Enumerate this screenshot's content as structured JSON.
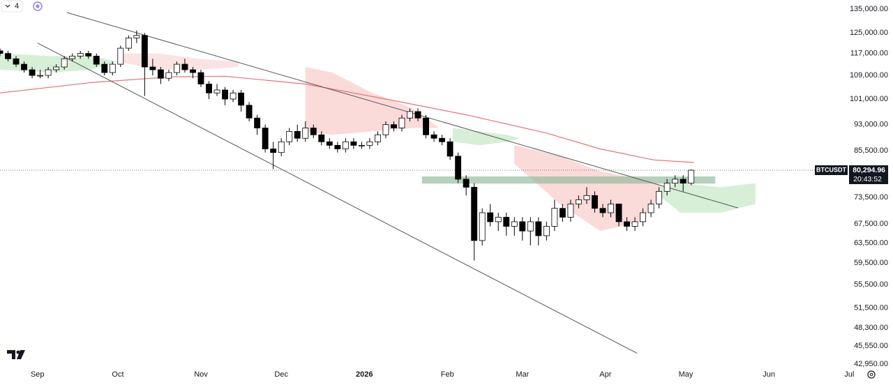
{
  "toolbar": {
    "label": "4"
  },
  "chart_data": {
    "type": "candlestick",
    "symbol": "BTCUSDT",
    "countdown": "20:43:52",
    "log_scale": true,
    "grid": false,
    "up_color": "#ffffff",
    "down_color": "#000000",
    "xlim": [
      -14,
      298.5
    ],
    "ylim": [
      42490,
      139000
    ],
    "xticks": [
      {
        "value": 0,
        "label": "Sep"
      },
      {
        "value": 30,
        "label": "Oct"
      },
      {
        "value": 61,
        "label": "Nov"
      },
      {
        "value": 91,
        "label": "Dec"
      },
      {
        "value": 122,
        "label": "2026"
      },
      {
        "value": 153,
        "label": "Feb"
      },
      {
        "value": 181,
        "label": "Mar"
      },
      {
        "value": 212,
        "label": "Apr"
      },
      {
        "value": 242,
        "label": "May"
      },
      {
        "value": 273,
        "label": "Jun"
      },
      {
        "value": 303,
        "label": "Jul"
      }
    ],
    "yticks": [
      {
        "value": 135000,
        "label": "135,000.00"
      },
      {
        "value": 125000,
        "label": "125,000.00"
      },
      {
        "value": 117000,
        "label": "117,000.00"
      },
      {
        "value": 109000,
        "label": "109,000.00"
      },
      {
        "value": 101000,
        "label": "101,000.00"
      },
      {
        "value": 93000,
        "label": "93,000.00"
      },
      {
        "value": 85500,
        "label": "85,500.00"
      },
      {
        "value": 73500,
        "label": "73,500.00"
      },
      {
        "value": 67500,
        "label": "67,500.00"
      },
      {
        "value": 63500,
        "label": "63,500.00"
      },
      {
        "value": 59500,
        "label": "59,500.00"
      },
      {
        "value": 55500,
        "label": "55,500.00"
      },
      {
        "value": 51500,
        "label": "51,500.00"
      },
      {
        "value": 48300,
        "label": "48,300.00"
      },
      {
        "value": 45550,
        "label": "45,550.00"
      },
      {
        "value": 42950,
        "label": "42,950.00"
      }
    ],
    "price_label": {
      "value": 80294.96,
      "label": "80,294.96"
    },
    "x": [
      -14,
      -11,
      -8,
      -5,
      -2,
      1,
      4,
      7,
      10,
      13,
      16,
      19,
      22,
      25,
      28,
      31,
      34,
      37,
      40,
      43,
      46,
      49,
      52,
      55,
      58,
      61,
      64,
      67,
      70,
      73,
      76,
      79,
      82,
      85,
      88,
      91,
      94,
      97,
      100,
      103,
      106,
      109,
      112,
      115,
      118,
      121,
      124,
      127,
      130,
      133,
      136,
      139,
      142,
      145,
      148,
      151,
      154,
      157,
      160,
      163,
      166,
      169,
      172,
      175,
      178,
      181,
      184,
      187,
      190,
      193,
      196,
      199,
      202,
      205,
      208,
      211,
      214,
      217,
      220,
      223,
      226,
      229,
      232,
      235,
      238,
      241,
      244
    ],
    "open": [
      118000,
      117000,
      115000,
      113000,
      111000,
      109000,
      109000,
      111000,
      112000,
      115000,
      116000,
      117000,
      116000,
      113000,
      110000,
      113000,
      119000,
      123000,
      124000,
      112000,
      111000,
      108000,
      110000,
      113000,
      111000,
      110000,
      106000,
      103000,
      104000,
      101000,
      103000,
      99000,
      95000,
      92000,
      86000,
      85000,
      88000,
      91000,
      89000,
      92000,
      90000,
      88000,
      87000,
      86000,
      88000,
      87000,
      87000,
      88000,
      90000,
      93000,
      92000,
      95000,
      97000,
      95000,
      90000,
      89000,
      88000,
      84000,
      78000,
      76000,
      64000,
      70000,
      68000,
      69000,
      67000,
      68000,
      66000,
      68000,
      65000,
      67000,
      71000,
      69000,
      72000,
      73000,
      74000,
      71000,
      70000,
      72000,
      68000,
      67000,
      68000,
      70000,
      72000,
      75000,
      77000,
      78000,
      77000
    ],
    "high": [
      119000,
      118000,
      116000,
      114000,
      112000,
      111000,
      112000,
      113000,
      116000,
      117000,
      118000,
      118000,
      117000,
      114000,
      114000,
      120000,
      124000,
      126000,
      125000,
      115000,
      112000,
      111000,
      114000,
      115000,
      112000,
      111000,
      107000,
      106000,
      105000,
      104000,
      104000,
      100000,
      96000,
      93000,
      88000,
      89000,
      92000,
      93000,
      94000,
      93000,
      91000,
      89000,
      88000,
      89000,
      89000,
      88000,
      89000,
      91000,
      94000,
      94000,
      96000,
      98000,
      98000,
      96000,
      91000,
      90000,
      89000,
      85000,
      79000,
      77000,
      71000,
      72000,
      70000,
      70000,
      69000,
      69000,
      69000,
      69000,
      68000,
      73000,
      72000,
      73000,
      74000,
      76000,
      75000,
      72000,
      73000,
      72000,
      69000,
      69000,
      71000,
      73000,
      76000,
      78000,
      79000,
      79000,
      80500
    ],
    "low": [
      116000,
      114000,
      112000,
      110000,
      108000,
      108000,
      108000,
      110000,
      111000,
      114000,
      115000,
      115000,
      112000,
      109000,
      109000,
      112000,
      118000,
      121000,
      102000,
      109000,
      106000,
      107000,
      109000,
      110000,
      108000,
      105000,
      101000,
      102000,
      99000,
      100000,
      97000,
      94000,
      90000,
      85000,
      80600,
      84000,
      87000,
      88000,
      88000,
      89000,
      87000,
      86000,
      85000,
      85000,
      86000,
      86000,
      86000,
      87000,
      89000,
      91000,
      91000,
      94000,
      94000,
      89000,
      88000,
      87000,
      83000,
      77000,
      74000,
      60000,
      63000,
      67000,
      66000,
      65000,
      65000,
      64000,
      63000,
      63000,
      64000,
      66000,
      68000,
      68000,
      71000,
      72000,
      70000,
      69000,
      69000,
      67000,
      66000,
      66000,
      67000,
      69000,
      71000,
      74000,
      76000,
      75000,
      76500
    ],
    "close": [
      117000,
      115000,
      113000,
      111000,
      109000,
      109000,
      111000,
      112000,
      115000,
      116000,
      117000,
      116000,
      113000,
      110000,
      113000,
      119000,
      123000,
      124000,
      112000,
      111000,
      108000,
      110000,
      113000,
      111000,
      110000,
      106000,
      103000,
      104000,
      101000,
      103000,
      99000,
      95000,
      92000,
      86000,
      85000,
      88000,
      91000,
      89000,
      92000,
      90000,
      88000,
      87000,
      86000,
      88000,
      87000,
      87000,
      88000,
      90000,
      93000,
      92000,
      95000,
      97000,
      95000,
      90000,
      89000,
      88000,
      84000,
      78000,
      76000,
      64000,
      70000,
      68000,
      69000,
      67000,
      68000,
      66000,
      68000,
      65000,
      67000,
      71000,
      69000,
      72000,
      73000,
      74000,
      71000,
      70000,
      72000,
      68000,
      67000,
      68000,
      70000,
      72000,
      75000,
      77000,
      78000,
      77000,
      80294.96
    ],
    "ma": {
      "color": "#e57373",
      "x": [
        -14,
        20,
        50,
        70,
        100,
        130,
        160,
        190,
        210,
        230,
        245
      ],
      "values": [
        103000,
        106500,
        108500,
        108700,
        106000,
        101000,
        96000,
        90500,
        86000,
        83000,
        82300
      ]
    },
    "clouds": [
      {
        "color": "#d7eed7",
        "x": [
          -14,
          5,
          20,
          30
        ],
        "upper": [
          117000,
          116000,
          116000,
          114000
        ],
        "lower": [
          111000,
          110000,
          111000,
          114000
        ]
      },
      {
        "color": "#fbe3e3",
        "x": [
          30,
          45,
          60,
          75
        ],
        "upper": [
          117000,
          117000,
          115000,
          114000
        ],
        "lower": [
          114000,
          111000,
          111000,
          112000
        ]
      },
      {
        "color": "#fbdada",
        "x": [
          100,
          110,
          125,
          140,
          150
        ],
        "upper": [
          112000,
          110000,
          103000,
          98000,
          92000
        ],
        "lower": [
          91000,
          90000,
          91000,
          92000,
          92000
        ]
      },
      {
        "color": "#d7eed7",
        "x": [
          155,
          165,
          175,
          180
        ],
        "upper": [
          92000,
          91000,
          90000,
          89000
        ],
        "lower": [
          88000,
          87000,
          88000,
          89000
        ]
      },
      {
        "color": "#fbdada",
        "x": [
          178,
          195,
          210,
          225,
          235
        ],
        "upper": [
          87000,
          84000,
          80000,
          78000,
          76000
        ],
        "lower": [
          82000,
          72000,
          66000,
          68000,
          76000
        ]
      },
      {
        "color": "#d7eed7",
        "x": [
          232,
          240,
          255,
          268
        ],
        "upper": [
          76000,
          77000,
          76000,
          77000
        ],
        "lower": [
          74000,
          70000,
          70000,
          72000
        ]
      }
    ],
    "trend_lines": [
      {
        "color": "#555555",
        "x": [
          11,
          261.5
        ],
        "values": [
          133500,
          71100
        ]
      },
      {
        "color": "#555555",
        "x": [
          0,
          223.8
        ],
        "values": [
          121000,
          44500
        ]
      }
    ],
    "zone": {
      "color": "#8fb89a",
      "x": [
        143.5,
        253
      ],
      "values": [
        78700,
        76900
      ]
    }
  }
}
